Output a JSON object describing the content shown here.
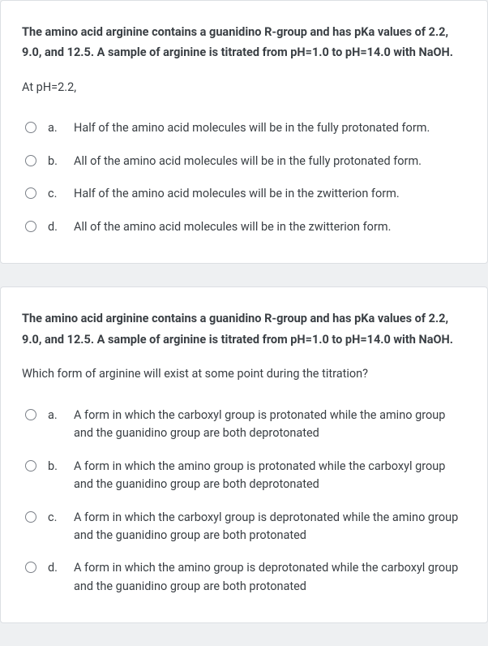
{
  "colors": {
    "page_bg": "#eef0f2",
    "card_bg": "#ffffff",
    "card_border": "#dcdfe3",
    "text": "#3a3f44",
    "radio_border": "#7b8088"
  },
  "typography": {
    "body_fontsize": 14.5,
    "stem_lineheight": 1.75,
    "option_lineheight": 1.55,
    "bold_weight": 700
  },
  "question1": {
    "stem_bold": "The amino acid arginine contains a guanidino R-group and has pKa values of 2.2, 9.0, and 12.5. A sample of arginine is titrated from pH=1.0 to pH=14.0 with NaOH.",
    "subtext": "At pH=2.2,",
    "options": [
      {
        "letter": "a.",
        "text": "Half of the amino acid molecules will be in the fully protonated form."
      },
      {
        "letter": "b.",
        "text": "All of the amino acid molecules will be in the fully protonated form."
      },
      {
        "letter": "c.",
        "text": "Half of the amino acid molecules will be in the zwitterion form."
      },
      {
        "letter": "d.",
        "text": "All of the amino acid molecules will be in the zwitterion form."
      }
    ]
  },
  "question2": {
    "stem_bold": "The amino acid arginine contains a guanidino R-group and has pKa values of 2.2, 9.0, and 12.5. A sample of arginine is titrated from pH=1.0 to pH=14.0 with NaOH.",
    "subtext": "Which form of arginine will exist at some point during the titration?",
    "options": [
      {
        "letter": "a.",
        "text": "A form in which the carboxyl group is protonated while the amino group and the guanidino group are both deprotonated"
      },
      {
        "letter": "b.",
        "text": "A form in which the amino group is protonated while the carboxyl group and the guanidino group are both deprotonated"
      },
      {
        "letter": "c.",
        "text": "A form in which the carboxyl group is deprotonated while the amino group and the guanidino group are both protonated"
      },
      {
        "letter": "d.",
        "text": "A form in which the amino group is deprotonated while the carboxyl group and the guanidino group are both protonated"
      }
    ]
  }
}
